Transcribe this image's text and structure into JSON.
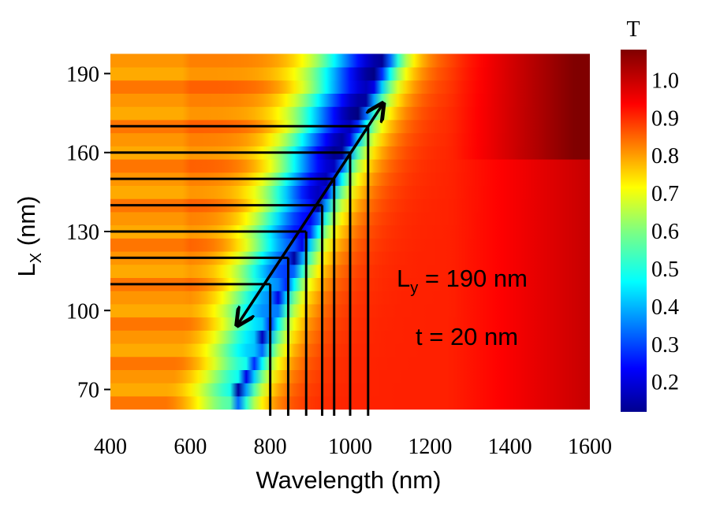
{
  "chart_data": {
    "type": "heatmap",
    "title": "",
    "xlabel": "Wavelength (nm)",
    "ylabel_main": "L",
    "ylabel_sub": "X",
    "ylabel_unit": " (nm)",
    "xlim": [
      400,
      1600
    ],
    "ylim": [
      60,
      200
    ],
    "x_ticks": [
      400,
      600,
      800,
      1000,
      1200,
      1400,
      1600
    ],
    "y_ticks": [
      70,
      100,
      130,
      160,
      190
    ],
    "colorbar": {
      "title": "T",
      "range": [
        0.12,
        1.08
      ],
      "ticks": [
        "1.0",
        "0.9",
        "0.8",
        "0.7",
        "0.6",
        "0.5",
        "0.4",
        "0.3",
        "0.2"
      ],
      "tick_values": [
        1.0,
        0.9,
        0.8,
        0.7,
        0.6,
        0.5,
        0.4,
        0.3,
        0.2
      ]
    },
    "rows_lx": [
      65,
      70,
      75,
      80,
      85,
      90,
      95,
      100,
      105,
      110,
      115,
      120,
      125,
      130,
      135,
      140,
      145,
      150,
      155,
      160,
      165,
      170,
      175,
      180,
      185,
      190,
      195
    ],
    "transmission_dip_nm": [
      705,
      720,
      735,
      750,
      765,
      778,
      790,
      803,
      815,
      830,
      845,
      860,
      875,
      890,
      905,
      920,
      935,
      950,
      965,
      980,
      995,
      1010,
      1025,
      1040,
      1055,
      1070,
      1085
    ],
    "dip_lines": [
      {
        "lx": 110,
        "wavelength": 800
      },
      {
        "lx": 120,
        "wavelength": 845
      },
      {
        "lx": 130,
        "wavelength": 890
      },
      {
        "lx": 140,
        "wavelength": 930
      },
      {
        "lx": 150,
        "wavelength": 960
      },
      {
        "lx": 160,
        "wavelength": 1000
      },
      {
        "lx": 170,
        "wavelength": 1045
      }
    ],
    "trend_arrow": {
      "start": {
        "wavelength": 720,
        "lx": 95
      },
      "end": {
        "wavelength": 1080,
        "lx": 178
      }
    },
    "annotations": [
      {
        "main": "L",
        "sub": "y",
        "rest": " = 190 nm"
      },
      {
        "main": "t = 20 nm",
        "sub": "",
        "rest": ""
      }
    ]
  }
}
